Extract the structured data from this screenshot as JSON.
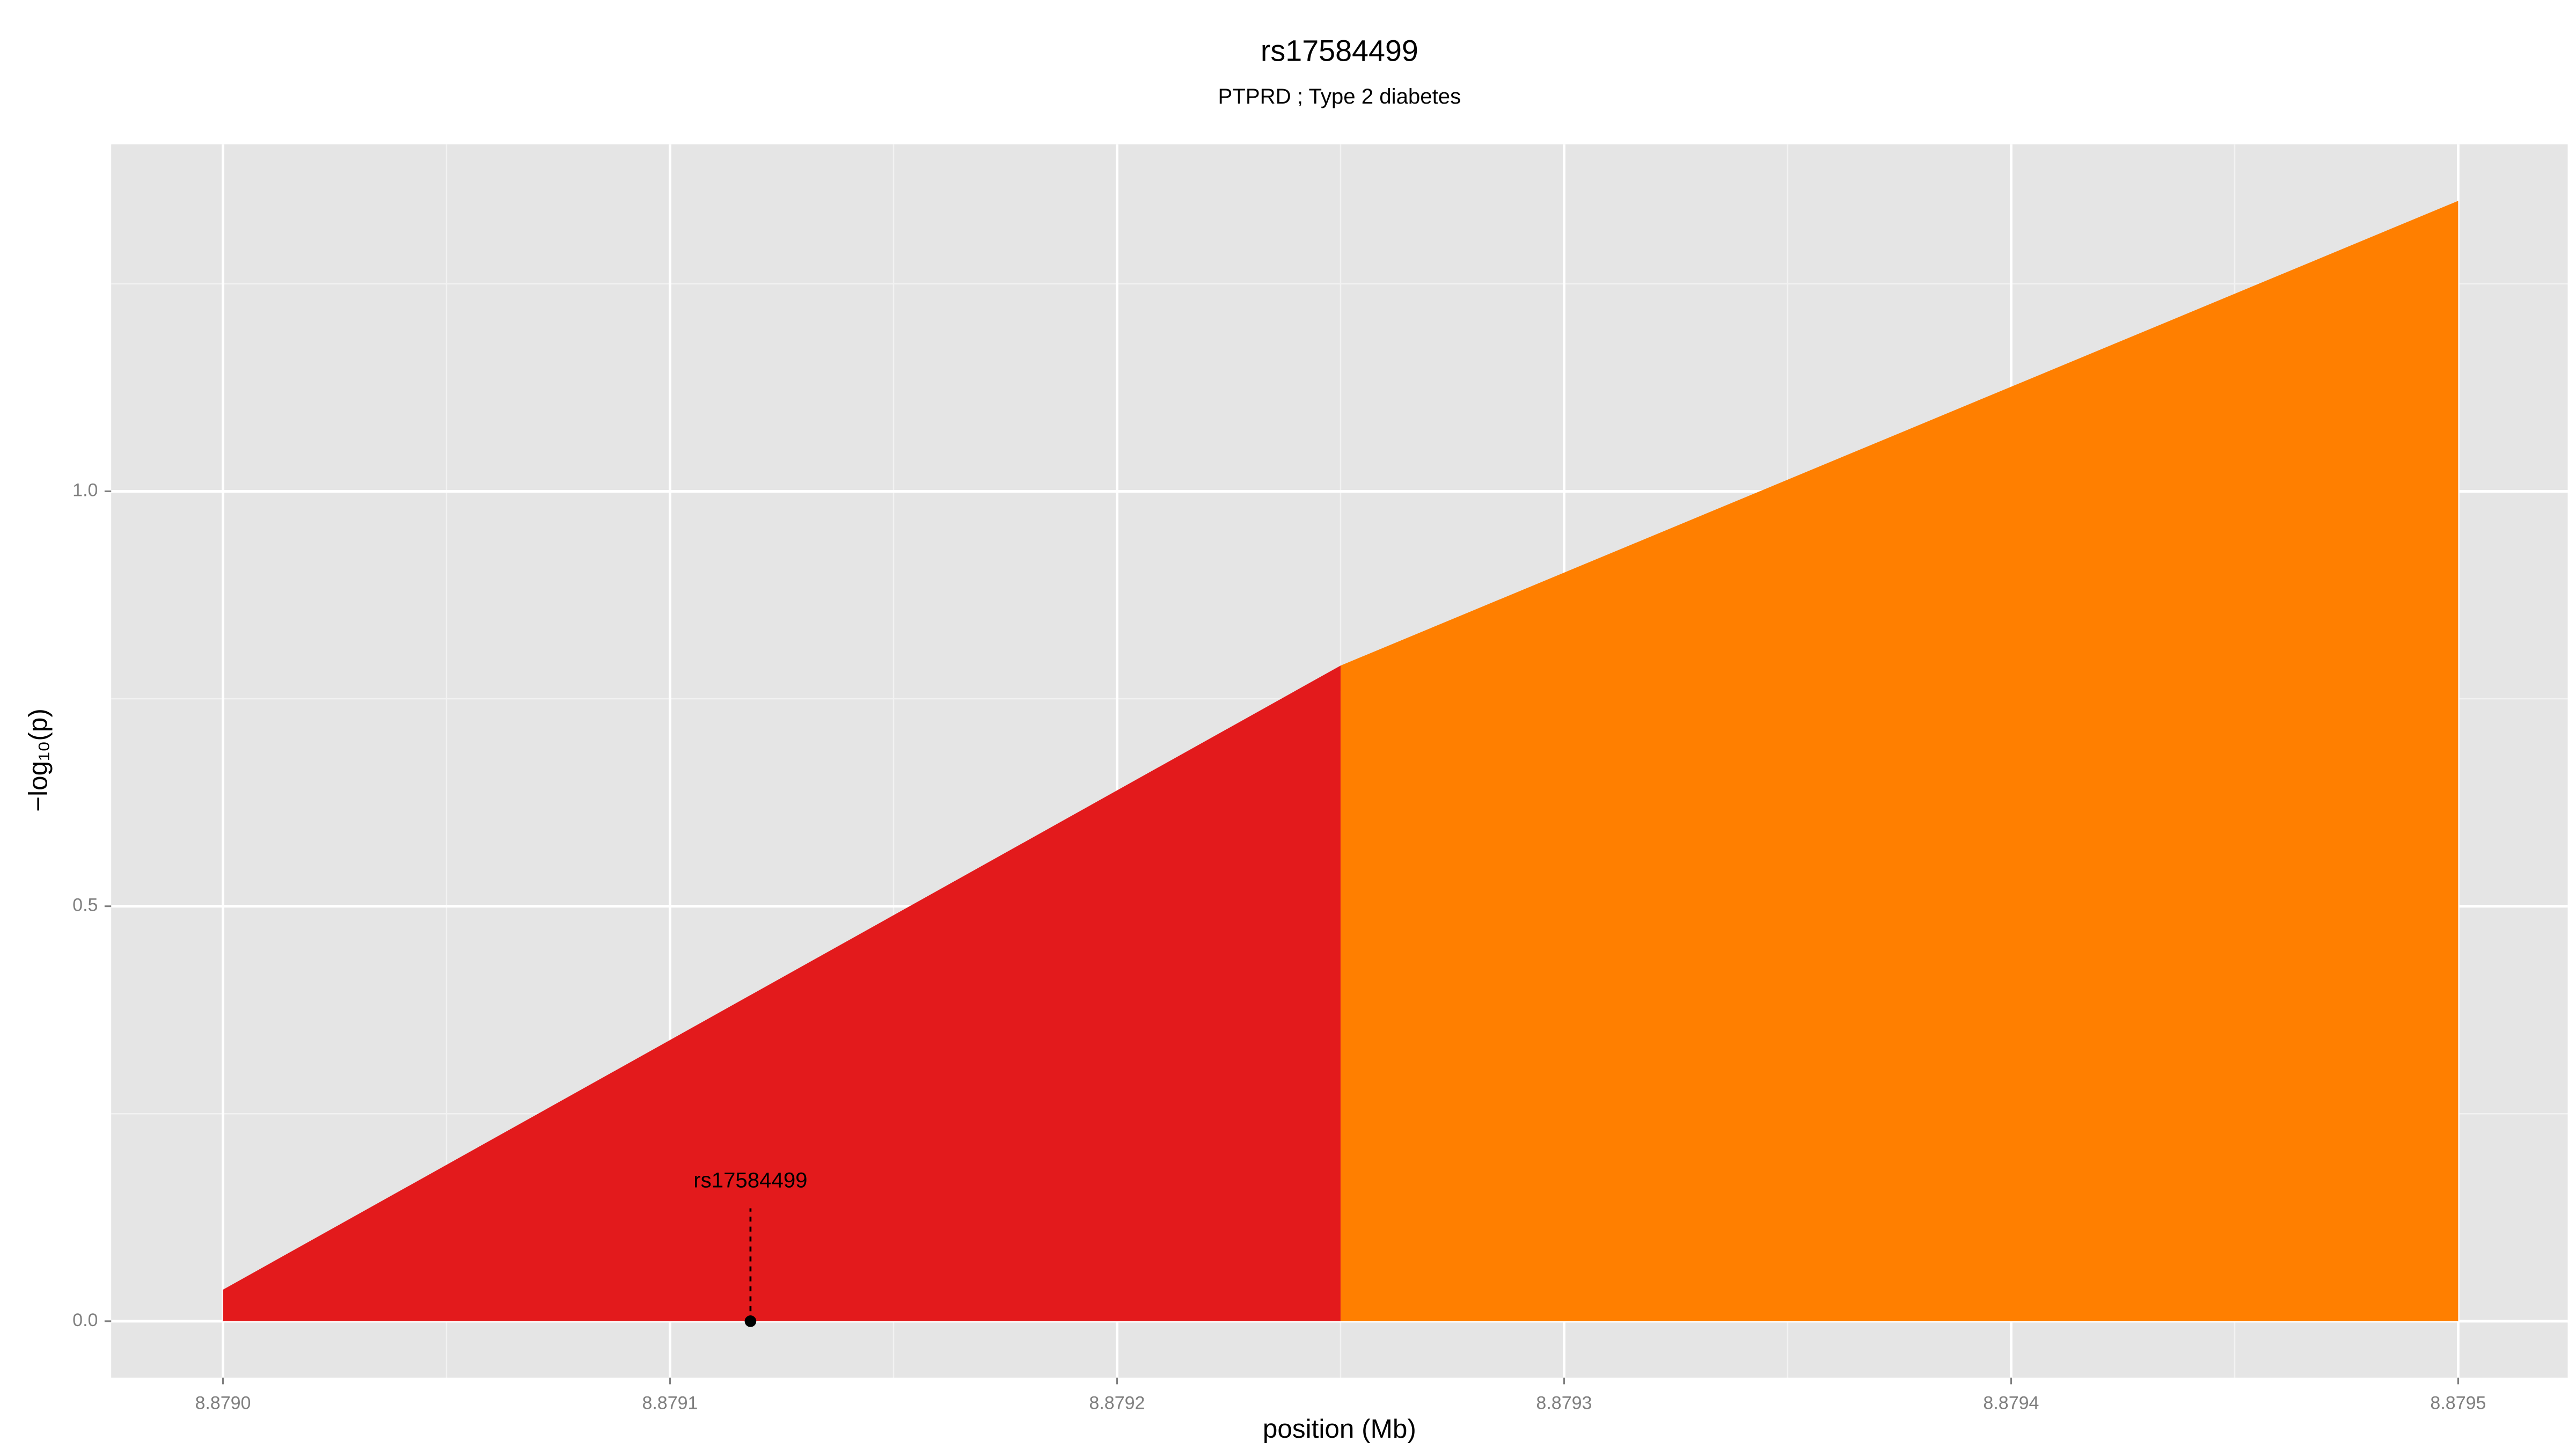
{
  "chart_data": {
    "type": "area",
    "title": "rs17584499",
    "subtitle": "PTPRD ; Type 2 diabetes",
    "x_label": "position (Mb)",
    "y_label": "−log₁₀(p)",
    "series": [
      {
        "color": "#e31a1c",
        "x": [
          8.879,
          8.87925
        ],
        "values": [
          0.038,
          0.79
        ]
      },
      {
        "color": "#ff7f00",
        "x": [
          8.87925,
          8.8795
        ],
        "values": [
          0.79,
          1.35
        ]
      }
    ],
    "annotations": [
      {
        "text": "rs17584499",
        "x": 8.879118,
        "y": 0
      }
    ],
    "xlim": [
      8.878975,
      8.8795245
    ],
    "ylim": [
      -0.068,
      1.418
    ],
    "xticks": [
      {
        "value": 8.879,
        "label": "8.8790"
      },
      {
        "value": 8.8791,
        "label": "8.8791"
      },
      {
        "value": 8.8792,
        "label": "8.8792"
      },
      {
        "value": 8.8793,
        "label": "8.8793"
      },
      {
        "value": 8.8794,
        "label": "8.8794"
      },
      {
        "value": 8.8795,
        "label": "8.8795"
      }
    ],
    "yticks": [
      {
        "value": 0,
        "label": "0.0"
      },
      {
        "value": 0.5,
        "label": "0.5"
      },
      {
        "value": 1,
        "label": "1.0"
      }
    ],
    "grid": true
  }
}
